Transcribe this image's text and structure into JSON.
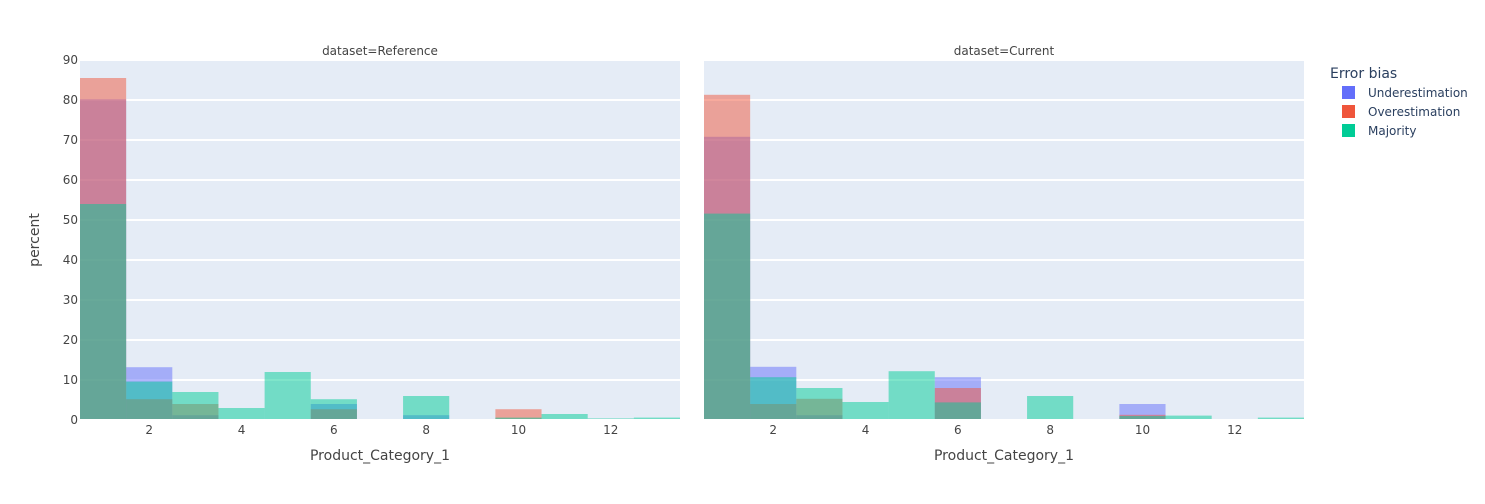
{
  "chart_data": {
    "type": "bar",
    "y_axis": {
      "label": "percent",
      "range": [
        0,
        90
      ],
      "ticks": [
        0,
        10,
        20,
        30,
        40,
        50,
        60,
        70,
        80,
        90
      ]
    },
    "x_axis": {
      "label": "Product_Category_1",
      "range": [
        0.5,
        13.5
      ],
      "ticks": [
        2,
        4,
        6,
        8,
        10,
        12
      ]
    },
    "grid": true,
    "barmode": "overlay",
    "legend": {
      "title": "Error bias",
      "placement": "top-right",
      "entries": [
        "Underestimation",
        "Overestimation",
        "Majority"
      ]
    },
    "colors": {
      "Underestimation": "#636efa",
      "Overestimation": "#ef553b",
      "Majority": "#00cc96",
      "plot_background": "#e5ecf6"
    },
    "panels": [
      {
        "title": "dataset=Reference",
        "categories": [
          1,
          2,
          3,
          4,
          5,
          6,
          7,
          8,
          9,
          10,
          11,
          12,
          13
        ],
        "series": [
          {
            "name": "Underestimation",
            "values": [
              80.2,
              13.2,
              1.2,
              0,
              0,
              4.0,
              0,
              1.2,
              0,
              0.3,
              0,
              0,
              0
            ]
          },
          {
            "name": "Overestimation",
            "values": [
              85.5,
              5.2,
              4.0,
              0,
              0,
              2.7,
              0,
              0,
              0,
              2.7,
              0,
              0,
              0
            ]
          },
          {
            "name": "Majority",
            "values": [
              54.0,
              9.6,
              7.0,
              3.0,
              12.0,
              5.2,
              0.2,
              6.0,
              0,
              0.6,
              1.5,
              0.4,
              0.6
            ]
          }
        ]
      },
      {
        "title": "dataset=Current",
        "categories": [
          1,
          2,
          3,
          4,
          5,
          6,
          7,
          8,
          9,
          10,
          11,
          12,
          13
        ],
        "series": [
          {
            "name": "Underestimation",
            "values": [
              70.8,
              13.3,
              1.2,
              0,
              0,
              10.7,
              0,
              0,
              0,
              4.0,
              0,
              0,
              0
            ]
          },
          {
            "name": "Overestimation",
            "values": [
              81.3,
              4.0,
              5.3,
              0,
              0,
              8.0,
              0,
              0,
              0,
              1.3,
              0,
              0,
              0
            ]
          },
          {
            "name": "Majority",
            "values": [
              51.6,
              10.7,
              8.0,
              4.5,
              12.2,
              4.4,
              0,
              6.0,
              0,
              1.0,
              1.1,
              0.2,
              0.6
            ]
          }
        ]
      }
    ]
  }
}
